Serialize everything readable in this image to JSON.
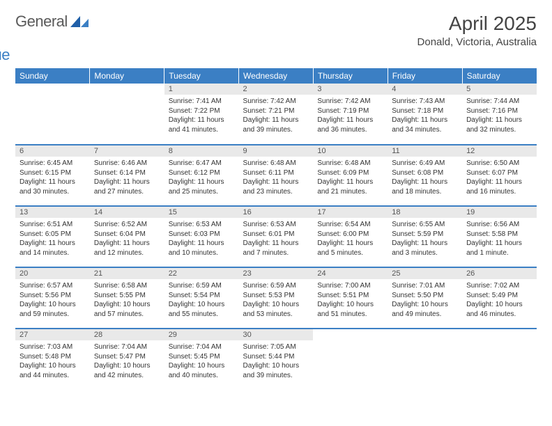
{
  "logo": {
    "text_general": "General",
    "text_blue": "Blue"
  },
  "title": "April 2025",
  "location": "Donald, Victoria, Australia",
  "colors": {
    "header_bg": "#3b7fc4",
    "header_text": "#ffffff",
    "daynum_bg": "#e9e9e9",
    "text": "#333333",
    "logo_gray": "#5a5a5a",
    "logo_blue": "#3b7fc4",
    "page_bg": "#ffffff"
  },
  "typography": {
    "title_fontsize": 28,
    "location_fontsize": 15,
    "header_fontsize": 12,
    "daynum_fontsize": 11,
    "body_fontsize": 10
  },
  "day_headers": [
    "Sunday",
    "Monday",
    "Tuesday",
    "Wednesday",
    "Thursday",
    "Friday",
    "Saturday"
  ],
  "weeks": [
    [
      null,
      null,
      {
        "n": "1",
        "sunrise": "Sunrise: 7:41 AM",
        "sunset": "Sunset: 7:22 PM",
        "daylight": "Daylight: 11 hours and 41 minutes."
      },
      {
        "n": "2",
        "sunrise": "Sunrise: 7:42 AM",
        "sunset": "Sunset: 7:21 PM",
        "daylight": "Daylight: 11 hours and 39 minutes."
      },
      {
        "n": "3",
        "sunrise": "Sunrise: 7:42 AM",
        "sunset": "Sunset: 7:19 PM",
        "daylight": "Daylight: 11 hours and 36 minutes."
      },
      {
        "n": "4",
        "sunrise": "Sunrise: 7:43 AM",
        "sunset": "Sunset: 7:18 PM",
        "daylight": "Daylight: 11 hours and 34 minutes."
      },
      {
        "n": "5",
        "sunrise": "Sunrise: 7:44 AM",
        "sunset": "Sunset: 7:16 PM",
        "daylight": "Daylight: 11 hours and 32 minutes."
      }
    ],
    [
      {
        "n": "6",
        "sunrise": "Sunrise: 6:45 AM",
        "sunset": "Sunset: 6:15 PM",
        "daylight": "Daylight: 11 hours and 30 minutes."
      },
      {
        "n": "7",
        "sunrise": "Sunrise: 6:46 AM",
        "sunset": "Sunset: 6:14 PM",
        "daylight": "Daylight: 11 hours and 27 minutes."
      },
      {
        "n": "8",
        "sunrise": "Sunrise: 6:47 AM",
        "sunset": "Sunset: 6:12 PM",
        "daylight": "Daylight: 11 hours and 25 minutes."
      },
      {
        "n": "9",
        "sunrise": "Sunrise: 6:48 AM",
        "sunset": "Sunset: 6:11 PM",
        "daylight": "Daylight: 11 hours and 23 minutes."
      },
      {
        "n": "10",
        "sunrise": "Sunrise: 6:48 AM",
        "sunset": "Sunset: 6:09 PM",
        "daylight": "Daylight: 11 hours and 21 minutes."
      },
      {
        "n": "11",
        "sunrise": "Sunrise: 6:49 AM",
        "sunset": "Sunset: 6:08 PM",
        "daylight": "Daylight: 11 hours and 18 minutes."
      },
      {
        "n": "12",
        "sunrise": "Sunrise: 6:50 AM",
        "sunset": "Sunset: 6:07 PM",
        "daylight": "Daylight: 11 hours and 16 minutes."
      }
    ],
    [
      {
        "n": "13",
        "sunrise": "Sunrise: 6:51 AM",
        "sunset": "Sunset: 6:05 PM",
        "daylight": "Daylight: 11 hours and 14 minutes."
      },
      {
        "n": "14",
        "sunrise": "Sunrise: 6:52 AM",
        "sunset": "Sunset: 6:04 PM",
        "daylight": "Daylight: 11 hours and 12 minutes."
      },
      {
        "n": "15",
        "sunrise": "Sunrise: 6:53 AM",
        "sunset": "Sunset: 6:03 PM",
        "daylight": "Daylight: 11 hours and 10 minutes."
      },
      {
        "n": "16",
        "sunrise": "Sunrise: 6:53 AM",
        "sunset": "Sunset: 6:01 PM",
        "daylight": "Daylight: 11 hours and 7 minutes."
      },
      {
        "n": "17",
        "sunrise": "Sunrise: 6:54 AM",
        "sunset": "Sunset: 6:00 PM",
        "daylight": "Daylight: 11 hours and 5 minutes."
      },
      {
        "n": "18",
        "sunrise": "Sunrise: 6:55 AM",
        "sunset": "Sunset: 5:59 PM",
        "daylight": "Daylight: 11 hours and 3 minutes."
      },
      {
        "n": "19",
        "sunrise": "Sunrise: 6:56 AM",
        "sunset": "Sunset: 5:58 PM",
        "daylight": "Daylight: 11 hours and 1 minute."
      }
    ],
    [
      {
        "n": "20",
        "sunrise": "Sunrise: 6:57 AM",
        "sunset": "Sunset: 5:56 PM",
        "daylight": "Daylight: 10 hours and 59 minutes."
      },
      {
        "n": "21",
        "sunrise": "Sunrise: 6:58 AM",
        "sunset": "Sunset: 5:55 PM",
        "daylight": "Daylight: 10 hours and 57 minutes."
      },
      {
        "n": "22",
        "sunrise": "Sunrise: 6:59 AM",
        "sunset": "Sunset: 5:54 PM",
        "daylight": "Daylight: 10 hours and 55 minutes."
      },
      {
        "n": "23",
        "sunrise": "Sunrise: 6:59 AM",
        "sunset": "Sunset: 5:53 PM",
        "daylight": "Daylight: 10 hours and 53 minutes."
      },
      {
        "n": "24",
        "sunrise": "Sunrise: 7:00 AM",
        "sunset": "Sunset: 5:51 PM",
        "daylight": "Daylight: 10 hours and 51 minutes."
      },
      {
        "n": "25",
        "sunrise": "Sunrise: 7:01 AM",
        "sunset": "Sunset: 5:50 PM",
        "daylight": "Daylight: 10 hours and 49 minutes."
      },
      {
        "n": "26",
        "sunrise": "Sunrise: 7:02 AM",
        "sunset": "Sunset: 5:49 PM",
        "daylight": "Daylight: 10 hours and 46 minutes."
      }
    ],
    [
      {
        "n": "27",
        "sunrise": "Sunrise: 7:03 AM",
        "sunset": "Sunset: 5:48 PM",
        "daylight": "Daylight: 10 hours and 44 minutes."
      },
      {
        "n": "28",
        "sunrise": "Sunrise: 7:04 AM",
        "sunset": "Sunset: 5:47 PM",
        "daylight": "Daylight: 10 hours and 42 minutes."
      },
      {
        "n": "29",
        "sunrise": "Sunrise: 7:04 AM",
        "sunset": "Sunset: 5:45 PM",
        "daylight": "Daylight: 10 hours and 40 minutes."
      },
      {
        "n": "30",
        "sunrise": "Sunrise: 7:05 AM",
        "sunset": "Sunset: 5:44 PM",
        "daylight": "Daylight: 10 hours and 39 minutes."
      },
      null,
      null,
      null
    ]
  ]
}
